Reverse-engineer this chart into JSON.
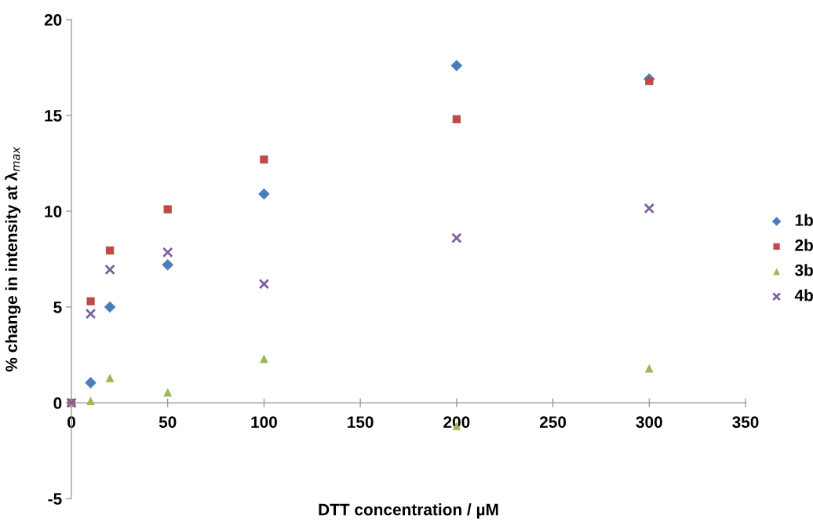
{
  "chart_data": {
    "type": "scatter",
    "xlabel": "DTT concentration / µM",
    "ylabel": "% change in intensity at λ$_{max}$",
    "x": [
      0,
      10,
      20,
      50,
      100,
      200,
      300
    ],
    "series": [
      {
        "name": "1b",
        "color": "#4a7ebb",
        "marker": "diamond",
        "values": [
          null,
          1.05,
          5.0,
          7.2,
          10.9,
          17.6,
          16.9
        ]
      },
      {
        "name": "2b",
        "color": "#be4b48",
        "marker": "square",
        "values": [
          0,
          5.3,
          7.95,
          10.1,
          12.7,
          14.8,
          16.8
        ]
      },
      {
        "name": "3b",
        "color": "#98b954",
        "marker": "triangle",
        "values": [
          0,
          0.1,
          1.3,
          0.55,
          2.3,
          -1.2,
          1.8
        ]
      },
      {
        "name": "4b",
        "color": "#7d60a0",
        "marker": "cross",
        "values": [
          0,
          4.65,
          6.95,
          7.85,
          6.2,
          8.6,
          10.15
        ]
      }
    ],
    "xlim": [
      0,
      350
    ],
    "xticks": [
      0,
      50,
      100,
      150,
      200,
      250,
      300,
      350
    ],
    "ylim": [
      -5,
      20
    ],
    "yticks": [
      -5,
      0,
      5,
      10,
      15,
      20
    ],
    "grid": false,
    "legend": "right"
  }
}
